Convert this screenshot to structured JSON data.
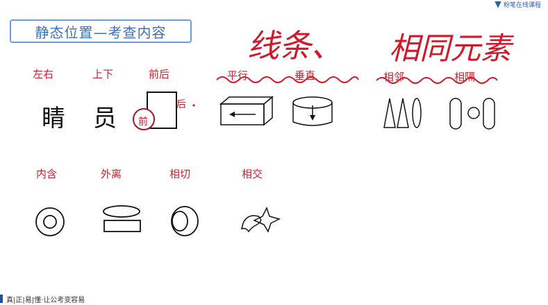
{
  "title": "静态位置—考查内容",
  "logo": {
    "text": "粉笔在线课程"
  },
  "handwritten": {
    "line": "线条、",
    "same": "相同元素"
  },
  "top_row": {
    "left_right": {
      "label": "左右",
      "char": "睛"
    },
    "up_down": {
      "label": "上下",
      "char": "员"
    },
    "front_back": {
      "label": "前后",
      "front_mark": "前",
      "back_mark": "后"
    },
    "parallel": {
      "label": "平行"
    },
    "perpendicular": {
      "label": "垂直"
    },
    "adjacent": {
      "label": "相邻"
    },
    "separated": {
      "label": "相隔"
    }
  },
  "bottom_row": {
    "contain": {
      "label": "内含"
    },
    "apart": {
      "label": "外离"
    },
    "tangent": {
      "label": "相切"
    },
    "intersect": {
      "label": "相交"
    }
  },
  "footer": {
    "text": "真|正|易|懂·让公考变容易"
  },
  "colors": {
    "accent_red": "#cc1f2d",
    "title_blue": "#3f6fb8"
  }
}
